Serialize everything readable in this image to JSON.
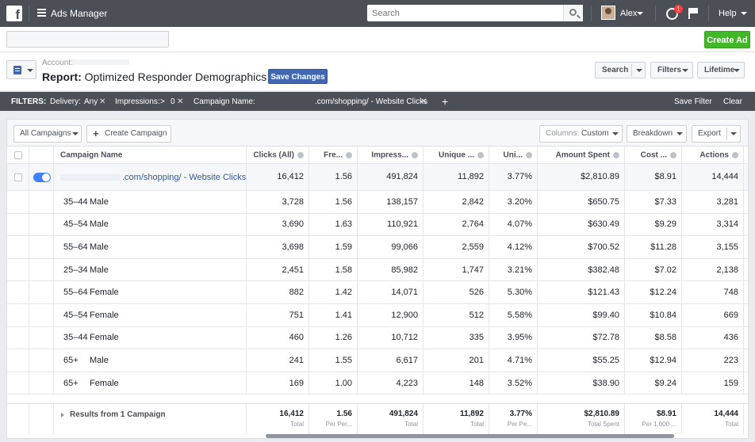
{
  "topbar": {
    "app_title": "Ads Manager",
    "search_placeholder": "Search",
    "user_name": "Alex",
    "notification_count": "1",
    "help_label": "Help"
  },
  "account_bar": {
    "create_ad_label": "Create Ad"
  },
  "report": {
    "account_label": "Account:",
    "title_prefix": "Report:",
    "title": "Optimized Responder Demographics",
    "save_changes_label": "Save Changes",
    "search_label": "Search",
    "filters_label": "Filters",
    "lifetime_label": "Lifetime"
  },
  "filters": {
    "label": "FILTERS:",
    "delivery": "Delivery:",
    "delivery_value": "Any",
    "impressions": "Impressions:",
    "impressions_op": ">",
    "impressions_value": "0",
    "campaign_name": "Campaign Name:",
    "campaign_value": ".com/shopping/ - Website Clicks",
    "add": "+",
    "save_filter": "Save Filter",
    "clear": "Clear"
  },
  "toolbar": {
    "all_campaigns": "All Campaigns",
    "create_campaign": "Create Campaign",
    "columns_label": "Columns:",
    "columns_value": "Custom",
    "breakdown": "Breakdown",
    "export": "Export"
  },
  "table": {
    "headers": [
      "Campaign Name",
      "Clicks (All)",
      "Fre...",
      "Impress...",
      "Unique ...",
      "Uni...",
      "Amount Spent",
      "Cost ...",
      "Actions"
    ],
    "campaign_row": {
      "name": ".com/shopping/ - Website Clicks",
      "clicks": "16,412",
      "freq": "1.56",
      "impressions": "491,824",
      "unique": "11,892",
      "unique_ctr": "3.77%",
      "spent": "$2,810.89",
      "cost": "$8.91",
      "actions": "14,444"
    },
    "rows": [
      {
        "age": "35–44",
        "gender": "Male",
        "clicks": "3,728",
        "freq": "1.56",
        "impressions": "138,157",
        "unique": "2,842",
        "unique_ctr": "3.20%",
        "spent": "$650.75",
        "cost": "$7.33",
        "actions": "3,281"
      },
      {
        "age": "45–54",
        "gender": "Male",
        "clicks": "3,690",
        "freq": "1.63",
        "impressions": "110,921",
        "unique": "2,764",
        "unique_ctr": "4.07%",
        "spent": "$630.49",
        "cost": "$9.29",
        "actions": "3,314"
      },
      {
        "age": "55–64",
        "gender": "Male",
        "clicks": "3,698",
        "freq": "1.59",
        "impressions": "99,066",
        "unique": "2,559",
        "unique_ctr": "4.12%",
        "spent": "$700.52",
        "cost": "$11.28",
        "actions": "3,155"
      },
      {
        "age": "25–34",
        "gender": "Male",
        "clicks": "2,451",
        "freq": "1.58",
        "impressions": "85,982",
        "unique": "1,747",
        "unique_ctr": "3.21%",
        "spent": "$382.48",
        "cost": "$7.02",
        "actions": "2,138"
      },
      {
        "age": "55–64",
        "gender": "Female",
        "clicks": "882",
        "freq": "1.42",
        "impressions": "14,071",
        "unique": "526",
        "unique_ctr": "5.30%",
        "spent": "$121.43",
        "cost": "$12.24",
        "actions": "748"
      },
      {
        "age": "45–54",
        "gender": "Female",
        "clicks": "751",
        "freq": "1.41",
        "impressions": "12,900",
        "unique": "512",
        "unique_ctr": "5.58%",
        "spent": "$99.40",
        "cost": "$10.84",
        "actions": "669"
      },
      {
        "age": "35–44",
        "gender": "Female",
        "clicks": "460",
        "freq": "1.26",
        "impressions": "10,712",
        "unique": "335",
        "unique_ctr": "3.95%",
        "spent": "$72.78",
        "cost": "$8.58",
        "actions": "436"
      },
      {
        "age": "65+",
        "gender": "Male",
        "clicks": "241",
        "freq": "1.55",
        "impressions": "6,617",
        "unique": "201",
        "unique_ctr": "4.71%",
        "spent": "$55.25",
        "cost": "$12.94",
        "actions": "223"
      },
      {
        "age": "65+",
        "gender": "Female",
        "clicks": "169",
        "freq": "1.00",
        "impressions": "4,223",
        "unique": "148",
        "unique_ctr": "3.52%",
        "spent": "$38.90",
        "cost": "$9.24",
        "actions": "159"
      }
    ],
    "footer": {
      "results": "Results from 1 Campaign",
      "clicks": "16,412",
      "clicks_sub": "Total",
      "freq": "1.56",
      "freq_sub": "Per Per...",
      "impressions": "491,824",
      "impressions_sub": "Total",
      "unique": "11,892",
      "unique_sub": "Total",
      "unique_ctr": "3.77%",
      "unique_ctr_sub": "Per Pe...",
      "spent": "$2,810.89",
      "spent_sub": "Total Spent",
      "cost": "$8.91",
      "cost_sub": "Per 1,000 ...",
      "actions": "14,444",
      "actions_sub": "Total"
    }
  },
  "colors": {
    "topbar": "#4b4f56",
    "primary_button": "#4267b2",
    "create_button": "#42b72a",
    "toggle": "#4080ff",
    "link": "#365899"
  }
}
